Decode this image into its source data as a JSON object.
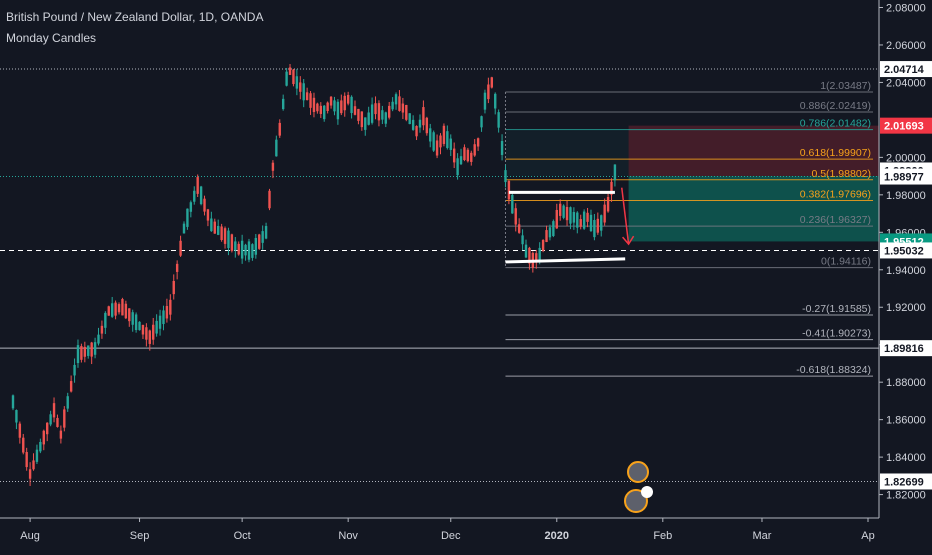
{
  "header": {
    "title": "British Pound / New Zealand Dollar, 1D, OANDA",
    "subtitle": "Monday Candles"
  },
  "colors": {
    "background": "#131722",
    "up": "#26a69a",
    "down": "#ef5350",
    "text": "#d1d4dc",
    "axis_text": "#d1d4dc",
    "red_label": "#f23645",
    "green_label": "#089981",
    "white_label": "#ffffff"
  },
  "chart_data": {
    "type": "candlestick",
    "symbol": "GBPNZD",
    "timeframe": "1D",
    "ylim": [
      1.8075,
      2.084
    ],
    "y_ticks": [
      {
        "value": 2.08,
        "label": "2.08000"
      },
      {
        "value": 2.06,
        "label": "2.06000"
      },
      {
        "value": 2.04,
        "label": "2.04000"
      },
      {
        "value": 2.0,
        "label": "2.00000"
      },
      {
        "value": 1.98,
        "label": "1.98000"
      },
      {
        "value": 1.96,
        "label": "1.96000"
      },
      {
        "value": 1.94,
        "label": "1.94000"
      },
      {
        "value": 1.92,
        "label": "1.92000"
      },
      {
        "value": 1.9,
        "label": "1.90000"
      },
      {
        "value": 1.88,
        "label": "1.88000"
      },
      {
        "value": 1.86,
        "label": "1.86000"
      },
      {
        "value": 1.84,
        "label": "1.84000"
      },
      {
        "value": 1.82,
        "label": "1.82000"
      }
    ],
    "x_ticks": [
      {
        "day": 5,
        "label": "Aug"
      },
      {
        "day": 37,
        "label": "Sep"
      },
      {
        "day": 67,
        "label": "Oct"
      },
      {
        "day": 98,
        "label": "Nov"
      },
      {
        "day": 128,
        "label": "Dec"
      },
      {
        "day": 159,
        "label": "2020",
        "bold": true
      },
      {
        "day": 190,
        "label": "Feb"
      },
      {
        "day": 219,
        "label": "Mar"
      },
      {
        "day": 250,
        "label": "Ap"
      }
    ],
    "price_labels": [
      {
        "value": 2.04714,
        "label": "2.04714",
        "style": "white"
      },
      {
        "value": 2.01693,
        "label": "2.01693",
        "style": "red"
      },
      {
        "value": 1.993,
        "label": "1.99300",
        "style": "white"
      },
      {
        "value": 1.98977,
        "label": "1.98977",
        "style": "white"
      },
      {
        "value": 1.95512,
        "label": "1.95512",
        "style": "green"
      },
      {
        "value": 1.95032,
        "label": "1.95032",
        "style": "white"
      },
      {
        "value": 1.89816,
        "label": "1.89816",
        "style": "white"
      },
      {
        "value": 1.82699,
        "label": "1.82699",
        "style": "white"
      }
    ],
    "horizontal_lines": [
      {
        "value": 2.04714,
        "style": "dotted",
        "color": "#b2b5be"
      },
      {
        "value": 1.98977,
        "style": "dotted",
        "color": "#26a69a"
      },
      {
        "value": 1.95032,
        "style": "dashed",
        "color": "#ffffff"
      },
      {
        "value": 1.89816,
        "style": "solid",
        "color": "#b2b5be"
      },
      {
        "value": 1.82699,
        "style": "dotted",
        "color": "#b2b5be"
      }
    ],
    "fibonacci": {
      "from_day": 144,
      "to_day": 254,
      "levels": [
        {
          "ratio": "1",
          "price": 2.03487,
          "label": "1(2.03487)",
          "color": "#787b86"
        },
        {
          "ratio": "0.886",
          "price": 2.02419,
          "label": "0.886(2.02419)",
          "color": "#787b86"
        },
        {
          "ratio": "0.786",
          "price": 2.01482,
          "label": "0.786(2.01482)",
          "color": "#26a69a"
        },
        {
          "ratio": "0.618",
          "price": 1.99907,
          "label": "0.618(1.99907)",
          "color": "#f7a21b"
        },
        {
          "ratio": "0.5",
          "price": 1.98802,
          "label": "0.5(1.98802)",
          "color": "#f7a21b"
        },
        {
          "ratio": "0.382",
          "price": 1.97696,
          "label": "0.382(1.97696)",
          "color": "#f7a21b"
        },
        {
          "ratio": "0.236",
          "price": 1.96327,
          "label": "0.236(1.96327)",
          "color": "#787b86"
        },
        {
          "ratio": "0",
          "price": 1.94116,
          "label": "0(1.94116)",
          "color": "#787b86"
        },
        {
          "ratio": "-0.27",
          "price": 1.91585,
          "label": "-0.27(1.91585)",
          "color": "#b2b5be"
        },
        {
          "ratio": "-0.41",
          "price": 1.90273,
          "label": "-0.41(1.90273)",
          "color": "#b2b5be"
        },
        {
          "ratio": "-0.618",
          "price": 1.88324,
          "label": "-0.618(1.88324)",
          "color": "#b2b5be"
        }
      ]
    },
    "position_tool": {
      "from_day": 180,
      "to_day": 254,
      "entry": 1.99,
      "stop": 2.01693,
      "target": 1.95512
    },
    "drawn_support_lines": [
      {
        "x1": 145,
        "y1": 1.9813,
        "x2": 176,
        "y2": 1.9813
      },
      {
        "x1": 144,
        "y1": 1.9442,
        "x2": 179,
        "y2": 1.9458
      }
    ],
    "drawn_arrow": {
      "from_day": 178,
      "from_price": 1.9838,
      "to_day": 180,
      "to_price": 1.9537
    },
    "candles_anchor": {
      "start_day": 0,
      "end_day": 176
    },
    "candles_walk": [
      [
        0,
        1.8695,
        1.872,
        1.861
      ],
      [
        5,
        1.831,
        1.8395,
        1.827
      ],
      [
        12,
        1.865,
        1.873,
        1.859
      ],
      [
        14,
        1.852,
        1.871,
        1.849
      ],
      [
        19,
        1.895,
        1.907,
        1.887
      ],
      [
        24,
        1.898,
        1.9075,
        1.89
      ],
      [
        28,
        1.918,
        1.925,
        1.9
      ],
      [
        32,
        1.92,
        1.927,
        1.914
      ],
      [
        40,
        1.904,
        1.91,
        1.898
      ],
      [
        46,
        1.92,
        1.924,
        1.914
      ],
      [
        50,
        1.962,
        1.968,
        1.955
      ],
      [
        54,
        1.985,
        1.99,
        1.98
      ],
      [
        58,
        1.964,
        1.97,
        1.956
      ],
      [
        62,
        1.958,
        1.966,
        1.95
      ],
      [
        66,
        1.951,
        1.958,
        1.945
      ],
      [
        70,
        1.95,
        1.96,
        1.936
      ],
      [
        72,
        1.955,
        1.962,
        1.947
      ],
      [
        74,
        1.96,
        1.97,
        1.954
      ],
      [
        76,
        1.995,
        2.003,
        1.989
      ],
      [
        78,
        2.015,
        2.022,
        2.01
      ],
      [
        80,
        2.042,
        2.049,
        2.036
      ],
      [
        81,
        2.046,
        2.055,
        2.04
      ],
      [
        83,
        2.04,
        2.05,
        2.033
      ],
      [
        85,
        2.035,
        2.042,
        2.026
      ],
      [
        88,
        2.028,
        2.035,
        2.022
      ],
      [
        91,
        2.024,
        2.031,
        2.017
      ],
      [
        93,
        2.03,
        2.04,
        2.024
      ],
      [
        95,
        2.025,
        2.034,
        2.018
      ],
      [
        98,
        2.031,
        2.042,
        2.024
      ],
      [
        100,
        2.025,
        2.033,
        2.016
      ],
      [
        103,
        2.018,
        2.025,
        2.01
      ],
      [
        106,
        2.026,
        2.035,
        2.02
      ],
      [
        109,
        2.021,
        2.03,
        2.011
      ],
      [
        112,
        2.031,
        2.038,
        2.021
      ],
      [
        115,
        2.024,
        2.032,
        2.017
      ],
      [
        118,
        2.014,
        2.021,
        2.006
      ],
      [
        120,
        2.022,
        2.03,
        2.016
      ],
      [
        122,
        2.012,
        2.021,
        2.002
      ],
      [
        124,
        2.005,
        2.013,
        1.998
      ],
      [
        126,
        2.012,
        2.02,
        2.006
      ],
      [
        128,
        2.007,
        2.015,
        1.999
      ],
      [
        130,
        1.995,
        2.002,
        1.988
      ],
      [
        132,
        2.002,
        2.008,
        1.995
      ],
      [
        134,
        2.0,
        2.007,
        1.993
      ],
      [
        136,
        2.008,
        2.016,
        2.0
      ],
      [
        138,
        2.03,
        2.038,
        2.022
      ],
      [
        140,
        2.04,
        2.044,
        2.028
      ],
      [
        142,
        2.02,
        2.032,
        2.0
      ],
      [
        144,
        1.99,
        2.0,
        1.978
      ],
      [
        146,
        1.975,
        1.983,
        1.96
      ],
      [
        148,
        1.962,
        1.968,
        1.95
      ],
      [
        150,
        1.95,
        1.96,
        1.944
      ],
      [
        152,
        1.945,
        1.952,
        1.941
      ],
      [
        154,
        1.948,
        1.955,
        1.942
      ],
      [
        156,
        1.958,
        1.965,
        1.95
      ],
      [
        158,
        1.962,
        1.975,
        1.955
      ],
      [
        160,
        1.972,
        1.978,
        1.965
      ],
      [
        162,
        1.97,
        1.977,
        1.962
      ],
      [
        164,
        1.968,
        1.976,
        1.96
      ],
      [
        166,
        1.965,
        1.972,
        1.957
      ],
      [
        168,
        1.968,
        1.976,
        1.96
      ],
      [
        170,
        1.962,
        1.97,
        1.958
      ],
      [
        172,
        1.965,
        1.973,
        1.96
      ],
      [
        174,
        1.975,
        1.983,
        1.97
      ],
      [
        176,
        1.992,
        1.993,
        1.982
      ]
    ]
  }
}
